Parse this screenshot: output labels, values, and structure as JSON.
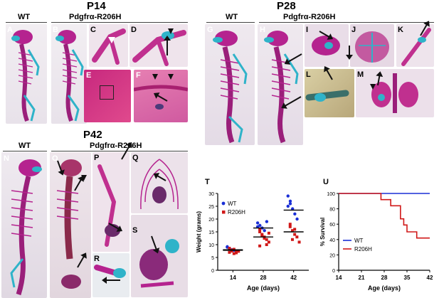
{
  "titles": {
    "p14": "P14",
    "p28": "P28",
    "p42": "P42"
  },
  "groups": {
    "p14_wt": "WT",
    "p14_mut": "Pdgfrα-R206H",
    "p28_wt": "WT",
    "p28_mut": "Pdgfrα-R206H",
    "p42_wt": "WT",
    "p42_mut": "Pdgfrα-R206H"
  },
  "panel_letters": [
    "A",
    "B",
    "C",
    "D",
    "E",
    "F",
    "G",
    "H",
    "I",
    "J",
    "K",
    "L",
    "M",
    "N",
    "O",
    "P",
    "Q",
    "R",
    "S",
    "T",
    "U"
  ],
  "colors": {
    "wt": "#1a2fd6",
    "r206h": "#d01818",
    "bone": "#b5238f",
    "cartilage": "#2fb3c9",
    "tissue": "#d9a3c4"
  },
  "chart_data": [
    {
      "type": "scatter",
      "panel": "T",
      "ylabel": "Weight (grams)",
      "xlabel": "Age (days)",
      "xticks": [
        "14",
        "28",
        "42"
      ],
      "ylim": [
        0,
        30
      ],
      "yticks": [
        "0",
        "5",
        "10",
        "15",
        "20",
        "25",
        "30"
      ],
      "legend": [
        "WT",
        "R206H"
      ],
      "series": [
        {
          "name": "WT",
          "x": "14",
          "values": [
            9.0,
            8.5,
            8.0,
            7.8,
            7.5,
            9.2
          ]
        },
        {
          "name": "R206H",
          "x": "14",
          "values": [
            7.0,
            7.5,
            8.2,
            6.8,
            7.4,
            8.6,
            7.9,
            6.5,
            7.2
          ]
        },
        {
          "name": "WT",
          "x": "28",
          "values": [
            18.5,
            17.5,
            16.5,
            15.5,
            19.0,
            17.0
          ]
        },
        {
          "name": "R206H",
          "x": "28",
          "values": [
            15.0,
            14.0,
            13.0,
            12.0,
            11.0,
            16.0,
            13.5,
            12.5,
            10.0,
            14.5,
            9.5
          ]
        },
        {
          "name": "WT",
          "x": "42",
          "values": [
            29.0,
            26.0,
            24.0,
            22.0,
            20.0,
            25.0,
            27.0
          ]
        },
        {
          "name": "R206H",
          "x": "42",
          "values": [
            18.0,
            15.5,
            14.0,
            13.0,
            11.0,
            17.0,
            12.0,
            16.0
          ]
        }
      ],
      "means": [
        {
          "x": "14",
          "WT": 8.0,
          "R206H": 7.8
        },
        {
          "x": "28",
          "WT": 16.5,
          "R206H": 13.0
        },
        {
          "x": "42",
          "WT": 23.5,
          "R206H": 15.0
        }
      ]
    },
    {
      "type": "line",
      "panel": "U",
      "ylabel": "% Survival",
      "xlabel": "Age (days)",
      "x": [
        14,
        21,
        28,
        35,
        42
      ],
      "ylim": [
        0,
        100
      ],
      "yticks": [
        "0",
        "20",
        "40",
        "60",
        "80",
        "100"
      ],
      "legend": [
        "WT",
        "R206H"
      ],
      "series": [
        {
          "name": "WT",
          "steps": [
            [
              14,
              100
            ],
            [
              42,
              100
            ]
          ]
        },
        {
          "name": "R206H",
          "steps": [
            [
              14,
              100
            ],
            [
              27,
              100
            ],
            [
              27,
              92
            ],
            [
              30,
              92
            ],
            [
              30,
              84
            ],
            [
              33,
              84
            ],
            [
              33,
              67
            ],
            [
              34,
              67
            ],
            [
              34,
              59
            ],
            [
              35,
              59
            ],
            [
              35,
              50
            ],
            [
              38,
              50
            ],
            [
              38,
              42
            ],
            [
              42,
              42
            ]
          ]
        }
      ]
    }
  ]
}
